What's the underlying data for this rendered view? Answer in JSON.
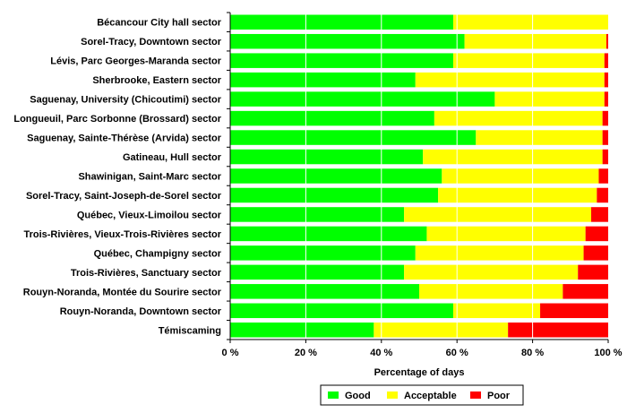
{
  "chart_data": {
    "type": "bar",
    "orientation": "horizontal",
    "stacked": true,
    "categories": [
      "Bécancour City hall sector",
      "Sorel-Tracy,  Downtown sector",
      "Lévis, Parc Georges-Maranda sector",
      "Sherbrooke, Eastern sector",
      "Saguenay, University (Chicoutimi) sector",
      "Longueuil, Parc Sorbonne (Brossard) sector",
      "Saguenay, Sainte-Thérèse (Arvida) sector",
      "Gatineau, Hull sector",
      "Shawinigan, Saint-Marc sector",
      "Sorel-Tracy, Saint-Joseph-de-Sorel sector",
      "Québec, Vieux-Limoilou sector",
      "Trois-Rivières, Vieux-Trois-Rivières sector",
      "Québec, Champigny sector",
      "Trois-Rivières, Sanctuary sector",
      "Rouyn-Noranda, Montée du Sourire sector",
      "Rouyn-Noranda,  Downtown sector",
      "Témiscaming"
    ],
    "series": [
      {
        "name": "Good",
        "color": "#00ff00",
        "values": [
          59,
          62,
          59,
          49,
          70,
          54,
          65,
          51,
          56,
          55,
          46,
          52,
          49,
          46,
          50,
          59,
          38
        ]
      },
      {
        "name": "Acceptable",
        "color": "#ffff00",
        "values": [
          41,
          37.5,
          40,
          50,
          29,
          44.5,
          33.5,
          47.5,
          41.5,
          42,
          49.5,
          42,
          44.5,
          46,
          38,
          23,
          35.5
        ]
      },
      {
        "name": "Poor",
        "color": "#ff0000",
        "values": [
          0,
          0.5,
          1,
          1,
          1,
          1.5,
          1.5,
          1.5,
          2.5,
          3,
          4.5,
          6,
          6.5,
          8,
          12,
          18,
          26.5
        ]
      }
    ],
    "xlim": [
      0,
      100
    ],
    "xticks": [
      "0 %",
      "20 %",
      "40 %",
      "60 %",
      "80 %",
      "100 %"
    ],
    "xlabel": "Percentage of days",
    "ylabel": "",
    "grid": "vertical",
    "legend": {
      "position": "bottom",
      "entries": [
        "Good",
        "Acceptable",
        "Poor"
      ]
    }
  }
}
